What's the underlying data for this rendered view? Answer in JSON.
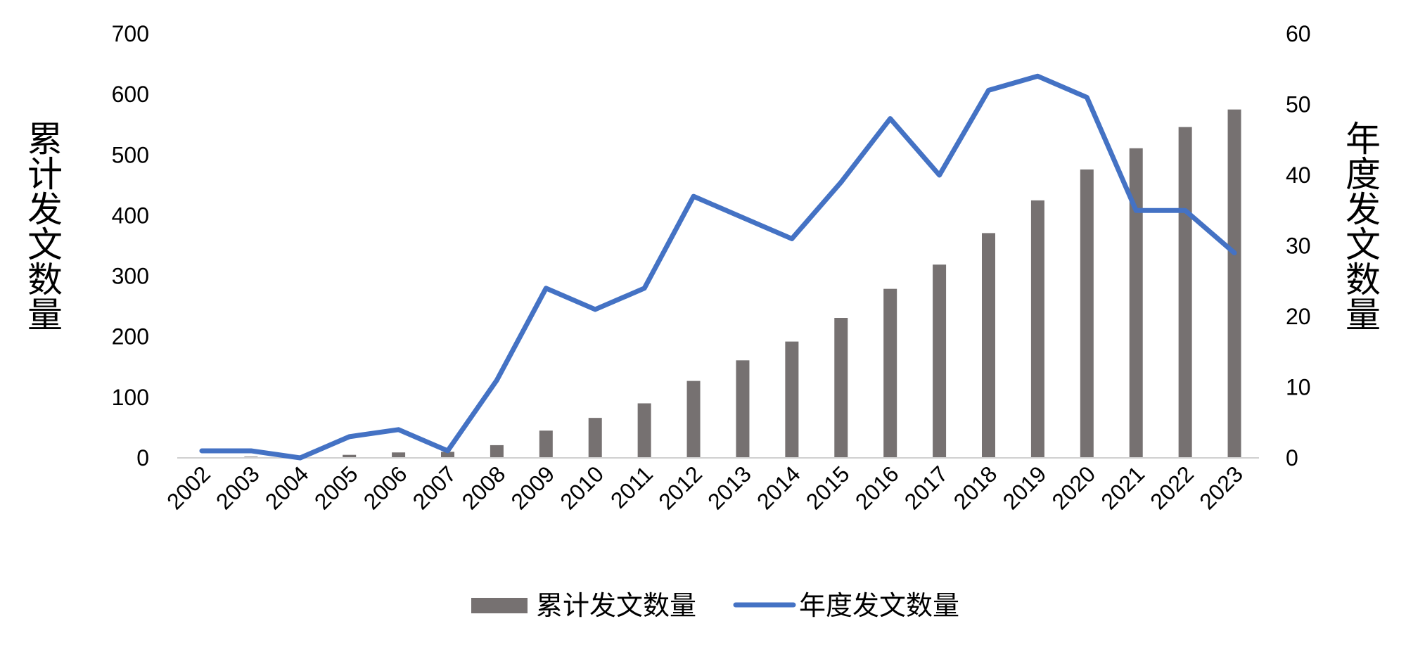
{
  "chart_data": {
    "type": "bar",
    "categories": [
      "2002",
      "2003",
      "2004",
      "2005",
      "2006",
      "2007",
      "2008",
      "2009",
      "2010",
      "2011",
      "2012",
      "2013",
      "2014",
      "2015",
      "2016",
      "2017",
      "2018",
      "2019",
      "2020",
      "2021",
      "2022",
      "2023"
    ],
    "series": [
      {
        "name": "累计发文数量",
        "type": "bar",
        "axis": "left",
        "color": "#767171",
        "values": [
          1,
          2,
          2,
          5,
          9,
          10,
          21,
          45,
          66,
          90,
          127,
          161,
          192,
          231,
          279,
          319,
          371,
          425,
          476,
          511,
          546,
          575
        ]
      },
      {
        "name": "年度发文数量",
        "type": "line",
        "axis": "right",
        "color": "#4472C4",
        "values": [
          1,
          1,
          0,
          3,
          4,
          1,
          11,
          24,
          21,
          24,
          37,
          34,
          31,
          39,
          48,
          40,
          52,
          54,
          51,
          35,
          35,
          29
        ]
      }
    ],
    "ylabel": "累计发文数量",
    "y2label": "年度发文数量",
    "ylim": [
      0,
      700
    ],
    "y2lim": [
      0,
      60
    ],
    "yticks": [
      "0",
      "100",
      "200",
      "300",
      "400",
      "500",
      "600",
      "700"
    ],
    "y2ticks": [
      "0",
      "10",
      "20",
      "30",
      "40",
      "50",
      "60"
    ],
    "grid": false,
    "legend_position": "bottom"
  }
}
